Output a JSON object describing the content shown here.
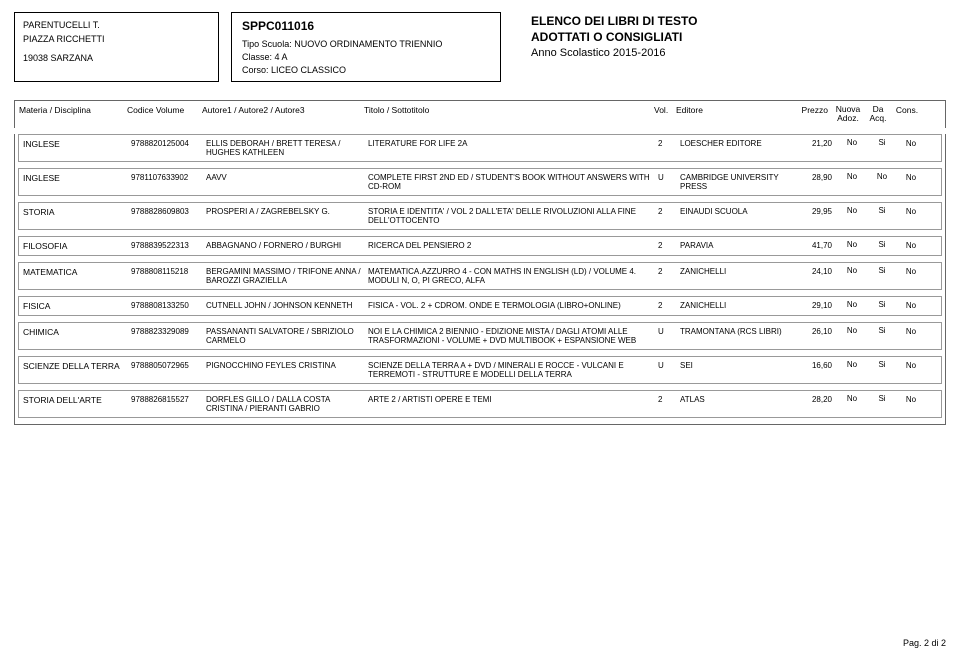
{
  "school": {
    "name": "PARENTUCELLI T.",
    "address": "PIAZZA RICCHETTI",
    "postal_city": "19038  SARZANA"
  },
  "codebox": {
    "code": "SPPC011016",
    "tipo_label": "Tipo Scuola:",
    "tipo_value": "NUOVO ORDINAMENTO TRIENNIO",
    "classe_label": "Classe:",
    "classe_value": "4 A",
    "corso_label": "Corso:",
    "corso_value": "LICEO CLASSICO"
  },
  "header_right": {
    "line1": "ELENCO DEI LIBRI DI TESTO",
    "line2": "ADOTTATI O CONSIGLIATI",
    "year": "Anno Scolastico 2015-2016"
  },
  "columns": {
    "materia": "Materia / Disciplina",
    "codice": "Codice Volume",
    "autore": "Autore1 / Autore2 / Autore3",
    "titolo": "Titolo / Sottotitolo",
    "vol": "Vol.",
    "editore": "Editore",
    "prezzo": "Prezzo",
    "nuova1": "Nuova",
    "nuova2": "Adoz.",
    "da1": "Da",
    "da2": "Acq.",
    "cons": "Cons."
  },
  "rows": [
    {
      "materia": "INGLESE",
      "codice": "9788820125004",
      "autore": "ELLIS DEBORAH / BRETT TERESA / HUGHES KATHLEEN",
      "titolo": "LITERATURE FOR LIFE 2A",
      "vol": "2",
      "editore": "LOESCHER EDITORE",
      "prezzo": "21,20",
      "nuova": "No",
      "da": "Si",
      "cons": "No"
    },
    {
      "materia": "INGLESE",
      "codice": "9781107633902",
      "autore": "AAVV",
      "titolo": "COMPLETE FIRST 2ND ED / STUDENT'S BOOK WITHOUT ANSWERS WITH CD-ROM",
      "vol": "U",
      "editore": "CAMBRIDGE UNIVERSITY PRESS",
      "prezzo": "28,90",
      "nuova": "No",
      "da": "No",
      "cons": "No"
    },
    {
      "materia": "STORIA",
      "codice": "9788828609803",
      "autore": "PROSPERI A / ZAGREBELSKY G.",
      "titolo": "STORIA E IDENTITA' / VOL 2 DALL'ETA' DELLE RIVOLUZIONI ALLA FINE DELL'OTTOCENTO",
      "vol": "2",
      "editore": "EINAUDI SCUOLA",
      "prezzo": "29,95",
      "nuova": "No",
      "da": "Si",
      "cons": "No"
    },
    {
      "materia": "FILOSOFIA",
      "codice": "9788839522313",
      "autore": "ABBAGNANO / FORNERO / BURGHI",
      "titolo": "RICERCA DEL PENSIERO 2",
      "vol": "2",
      "editore": "PARAVIA",
      "prezzo": "41,70",
      "nuova": "No",
      "da": "Si",
      "cons": "No"
    },
    {
      "materia": "MATEMATICA",
      "codice": "9788808115218",
      "autore": "BERGAMINI MASSIMO / TRIFONE ANNA / BAROZZI GRAZIELLA",
      "titolo": "MATEMATICA.AZZURRO 4 - CON MATHS IN ENGLISH (LD) / VOLUME 4. MODULI N, O, PI GRECO, ALFA",
      "vol": "2",
      "editore": "ZANICHELLI",
      "prezzo": "24,10",
      "nuova": "No",
      "da": "Si",
      "cons": "No"
    },
    {
      "materia": "FISICA",
      "codice": "9788808133250",
      "autore": "CUTNELL JOHN / JOHNSON KENNETH",
      "titolo": "FISICA - VOL. 2 + CDROM. ONDE E TERMOLOGIA (LIBRO+ONLINE)",
      "vol": "2",
      "editore": "ZANICHELLI",
      "prezzo": "29,10",
      "nuova": "No",
      "da": "Si",
      "cons": "No"
    },
    {
      "materia": "CHIMICA",
      "codice": "9788823329089",
      "autore": "PASSANANTI SALVATORE / SBRIZIOLO CARMELO",
      "titolo": "NOI E LA CHIMICA 2 BIENNIO - EDIZIONE MISTA / DAGLI ATOMI ALLE TRASFORMAZIONI - VOLUME + DVD MULTIBOOK + ESPANSIONE WEB",
      "vol": "U",
      "editore": "TRAMONTANA (RCS LIBRI)",
      "prezzo": "26,10",
      "nuova": "No",
      "da": "Si",
      "cons": "No"
    },
    {
      "materia": "SCIENZE DELLA TERRA",
      "codice": "9788805072965",
      "autore": "PIGNOCCHINO FEYLES CRISTINA",
      "titolo": "SCIENZE DELLA TERRA A + DVD / MINERALI E ROCCE - VULCANI E TERREMOTI - STRUTTURE E MODELLI DELLA TERRA",
      "vol": "U",
      "editore": "SEI",
      "prezzo": "16,60",
      "nuova": "No",
      "da": "Si",
      "cons": "No"
    },
    {
      "materia": "STORIA DELL'ARTE",
      "codice": "9788826815527",
      "autore": "DORFLES GILLO / DALLA COSTA CRISTINA / PIERANTI GABRIO",
      "titolo": "ARTE 2 / ARTISTI OPERE E TEMI",
      "vol": "2",
      "editore": "ATLAS",
      "prezzo": "28,20",
      "nuova": "No",
      "da": "Si",
      "cons": "No"
    }
  ],
  "footer": "Pag. 2 di 2"
}
